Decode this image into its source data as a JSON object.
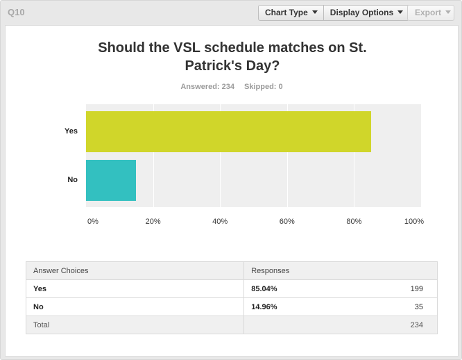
{
  "question": {
    "number": "Q10",
    "title_line1": "Should the VSL schedule matches on St.",
    "title_line2": "Patrick's Day?",
    "answered": "Answered: 234",
    "skipped": "Skipped: 0"
  },
  "toolbar": {
    "chart_type": "Chart Type",
    "display_options": "Display Options",
    "export": "Export"
  },
  "chart_data": {
    "type": "bar",
    "orientation": "horizontal",
    "categories": [
      "Yes",
      "No"
    ],
    "values": [
      85.04,
      14.96
    ],
    "colors": [
      "#d0d62a",
      "#33c0c0"
    ],
    "xlim": [
      0,
      100
    ],
    "xticks": [
      "0%",
      "20%",
      "40%",
      "60%",
      "80%",
      "100%"
    ],
    "grid": true
  },
  "table": {
    "headers": [
      "Answer Choices",
      "Responses"
    ],
    "rows": [
      {
        "choice": "Yes",
        "percent": "85.04%",
        "count": "199"
      },
      {
        "choice": "No",
        "percent": "14.96%",
        "count": "35"
      }
    ],
    "total_label": "Total",
    "total_count": "234"
  }
}
